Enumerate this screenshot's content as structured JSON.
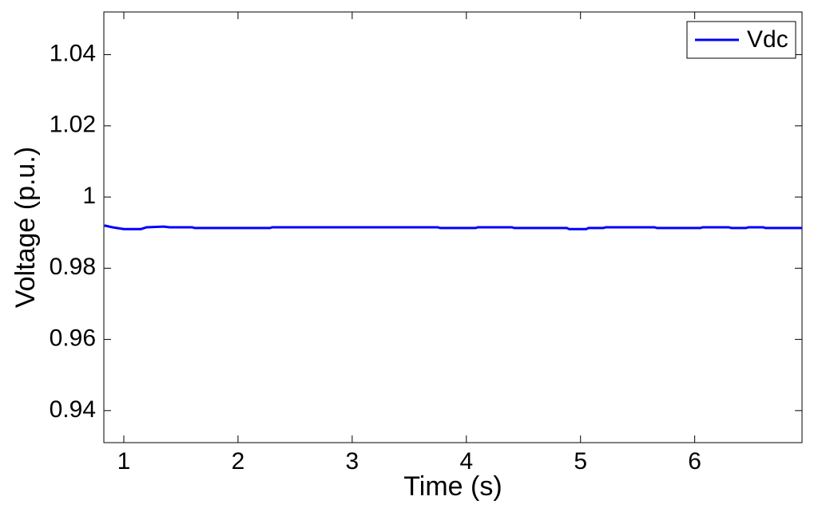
{
  "chart_data": {
    "type": "line",
    "xlabel": "Time (s)",
    "ylabel": "Voltage (p.u.)",
    "x": [
      0.83,
      0.9,
      1.0,
      1.15,
      1.2,
      1.35,
      1.4,
      1.6,
      1.62,
      2.28,
      2.3,
      3.75,
      3.77,
      4.08,
      4.1,
      4.4,
      4.42,
      4.88,
      4.9,
      5.05,
      5.07,
      5.2,
      5.22,
      5.65,
      5.67,
      6.05,
      6.07,
      6.3,
      6.32,
      6.45,
      6.47,
      6.6,
      6.62,
      6.94
    ],
    "series": [
      {
        "name": "Vdc",
        "color": "#0000ff",
        "values": [
          0.992,
          0.9915,
          0.991,
          0.991,
          0.9915,
          0.9917,
          0.9915,
          0.9915,
          0.9913,
          0.9913,
          0.9915,
          0.9915,
          0.9913,
          0.9913,
          0.9915,
          0.9915,
          0.9913,
          0.9913,
          0.991,
          0.991,
          0.9913,
          0.9913,
          0.9915,
          0.9915,
          0.9913,
          0.9913,
          0.9915,
          0.9915,
          0.9913,
          0.9913,
          0.9915,
          0.9915,
          0.9913,
          0.9913
        ]
      }
    ],
    "xlim": [
      0.825,
      6.94
    ],
    "xticks": [
      1,
      2,
      3,
      4,
      5,
      6
    ],
    "ylim": [
      0.931,
      1.052
    ],
    "yticks": [
      0.94,
      0.96,
      0.98,
      1,
      1.02,
      1.04
    ],
    "grid": false,
    "legend": "upper right"
  }
}
